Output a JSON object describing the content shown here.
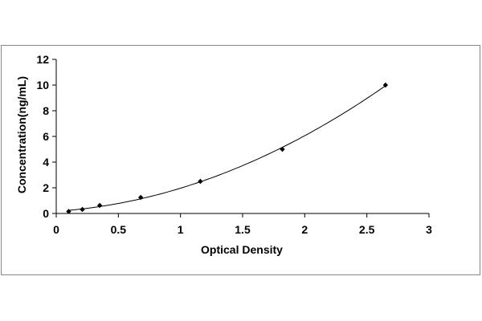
{
  "chart_data": {
    "type": "scatter",
    "title": "",
    "xlabel": "Optical Density",
    "ylabel": "Concentration(ng/mL)",
    "xlim": [
      0,
      3
    ],
    "ylim": [
      0,
      12
    ],
    "xticks": [
      "0",
      "0.5",
      "1",
      "1.5",
      "2",
      "2.5",
      "3"
    ],
    "yticks": [
      "0",
      "2",
      "4",
      "6",
      "8",
      "10",
      "12"
    ],
    "grid": false,
    "legend": "none",
    "series": [
      {
        "x": [
          0.1,
          0.21,
          0.35,
          0.68,
          1.16,
          1.82,
          2.65
        ],
        "y": [
          0.156,
          0.312,
          0.625,
          1.25,
          2.5,
          5,
          10
        ],
        "marker": "diamond",
        "trendline": "polynomial"
      }
    ],
    "colors": {
      "marker": "#000000",
      "line": "#000000",
      "frame": "#888888",
      "background": "#ffffff"
    }
  }
}
